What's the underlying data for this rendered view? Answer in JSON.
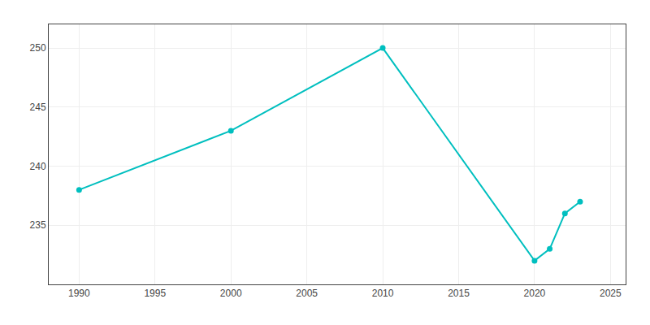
{
  "chart_data": {
    "type": "line",
    "x": [
      1990,
      2000,
      2010,
      2020,
      2021,
      2022,
      2023
    ],
    "values": [
      238,
      243,
      250,
      232,
      233,
      236,
      237
    ],
    "color": "#00BFBF",
    "marker": "circle",
    "xlim": [
      1988,
      2026
    ],
    "ylim": [
      230,
      252
    ],
    "xticks": [
      1990,
      1995,
      2000,
      2005,
      2010,
      2015,
      2020,
      2025
    ],
    "yticks": [
      235,
      240,
      245,
      250
    ],
    "grid": true
  }
}
